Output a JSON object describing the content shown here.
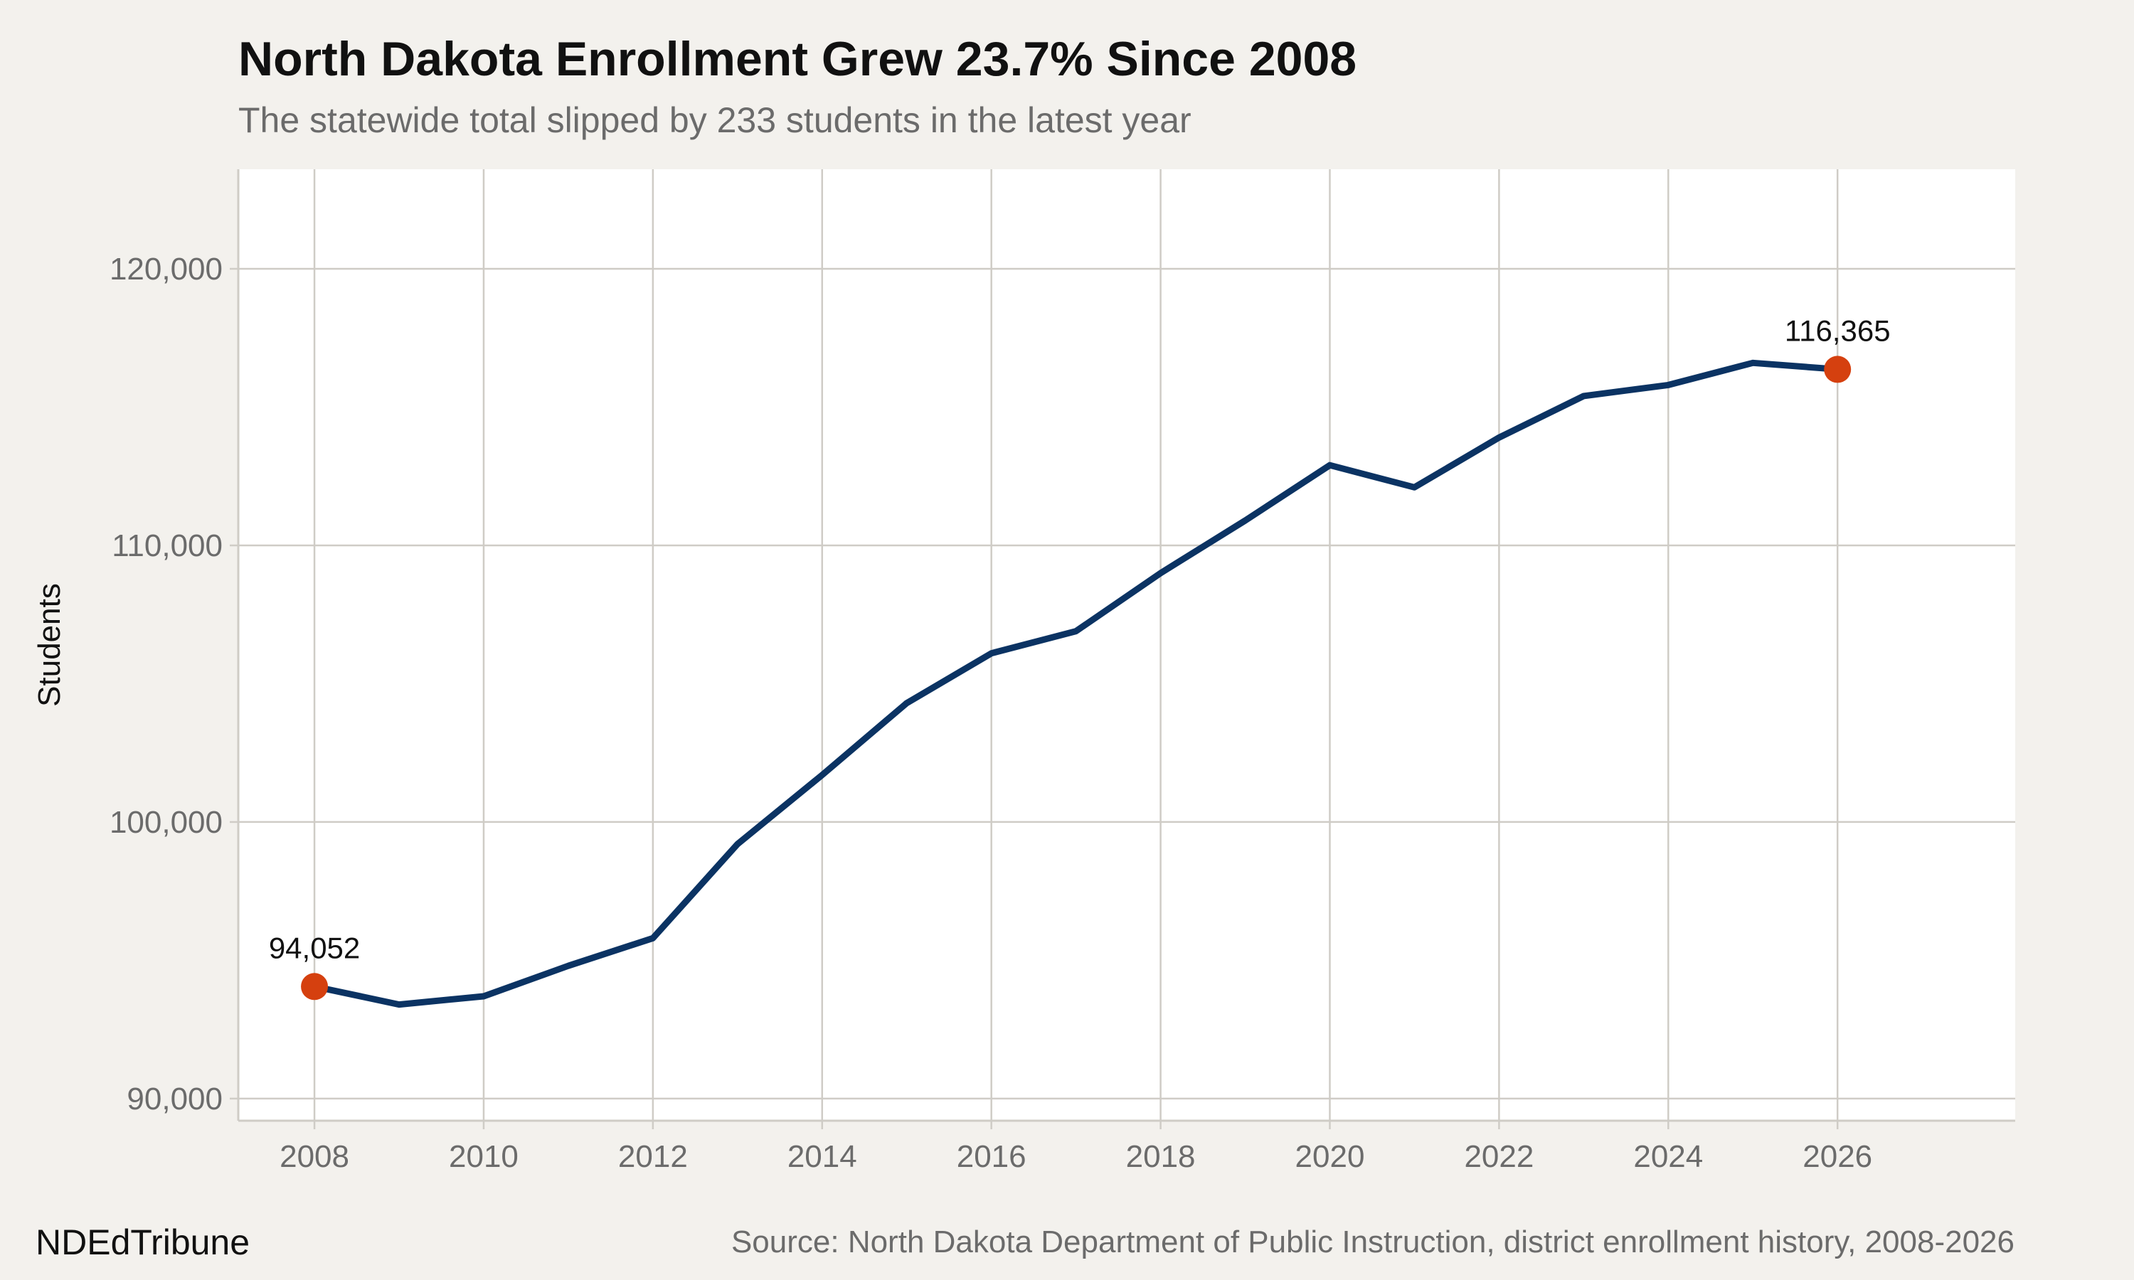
{
  "header": {
    "title": "North Dakota Enrollment Grew 23.7% Since 2008",
    "subtitle": "The statewide total slipped by 233 students in the latest year"
  },
  "footer": {
    "brand": "NDEdTribune",
    "source": "Source: North Dakota Department of Public Instruction, district enrollment history, 2008-2026"
  },
  "colors": {
    "background": "#f3f1ed",
    "panel": "#ffffff",
    "grid": "#cfccc6",
    "line": "#0b3363",
    "highlight": "#d5400f"
  },
  "chart_data": {
    "type": "line",
    "ylabel": "Students",
    "xlabel": "",
    "xlim": [
      2007.1,
      2028.1
    ],
    "ylim": [
      89200,
      123600
    ],
    "x_ticks": [
      2008,
      2010,
      2012,
      2014,
      2016,
      2018,
      2020,
      2022,
      2024,
      2026
    ],
    "y_ticks": [
      90000,
      100000,
      110000,
      120000
    ],
    "y_tick_labels": [
      "90,000",
      "100,000",
      "110,000",
      "120,000"
    ],
    "grid": true,
    "series": [
      {
        "x": [
          2008,
          2009,
          2010,
          2011,
          2012,
          2013,
          2014,
          2015,
          2016,
          2017,
          2018,
          2019,
          2020,
          2021,
          2022,
          2023,
          2024,
          2025,
          2026
        ],
        "values": [
          94052,
          93400,
          93700,
          94800,
          95800,
          99200,
          101700,
          104300,
          106100,
          106900,
          109000,
          110900,
          112900,
          112100,
          113900,
          115400,
          115800,
          116598,
          116365
        ]
      }
    ],
    "highlights": [
      {
        "x": 2008,
        "y": 94052,
        "label": "94,052"
      },
      {
        "x": 2026,
        "y": 116365,
        "label": "116,365"
      }
    ]
  }
}
